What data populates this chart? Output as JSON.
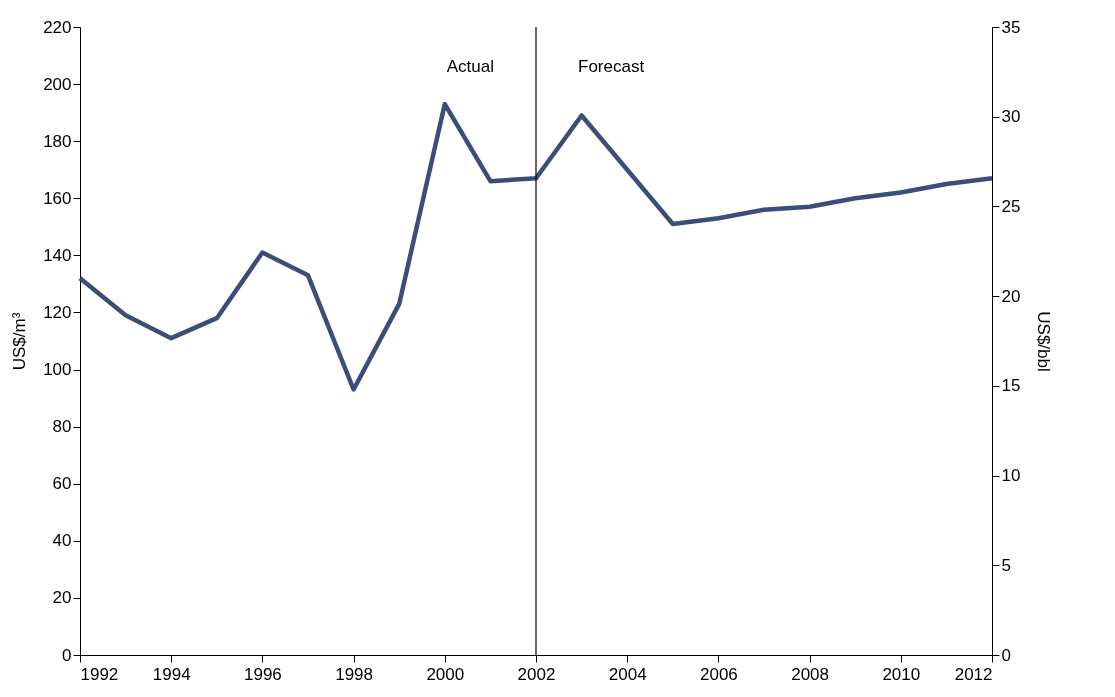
{
  "chart_data": {
    "type": "line",
    "ylabel": "US$/m³",
    "y2label": "US$/bbl",
    "x": [
      1992,
      1993,
      1994,
      1995,
      1996,
      1997,
      1998,
      1999,
      2000,
      2001,
      2002,
      2003,
      2004,
      2005,
      2006,
      2007,
      2008,
      2009,
      2010,
      2011,
      2012
    ],
    "series": [
      {
        "color": "#3d4d7a",
        "values": [
          132,
          119,
          111,
          118,
          141,
          133,
          93,
          123,
          193,
          166,
          167,
          189,
          170,
          151,
          153,
          156,
          157,
          160,
          162,
          165,
          167
        ]
      }
    ],
    "xlim": [
      1992,
      2012
    ],
    "xticks": [
      1992,
      1994,
      1996,
      1998,
      2000,
      2002,
      2004,
      2006,
      2008,
      2010,
      2012
    ],
    "ylim": [
      0,
      220
    ],
    "yticks": [
      0,
      20,
      40,
      60,
      80,
      100,
      120,
      140,
      160,
      180,
      200,
      220
    ],
    "y2lim": [
      0,
      35
    ],
    "y2ticks": [
      0,
      5,
      10,
      15,
      20,
      25,
      30,
      35
    ],
    "ref_lines": [
      {
        "axis": "x",
        "value": 2002,
        "color": "#000000"
      }
    ],
    "annotations": [
      "Actual",
      "Forecast"
    ],
    "grid": false,
    "marker": "none",
    "line_style": "solid"
  }
}
